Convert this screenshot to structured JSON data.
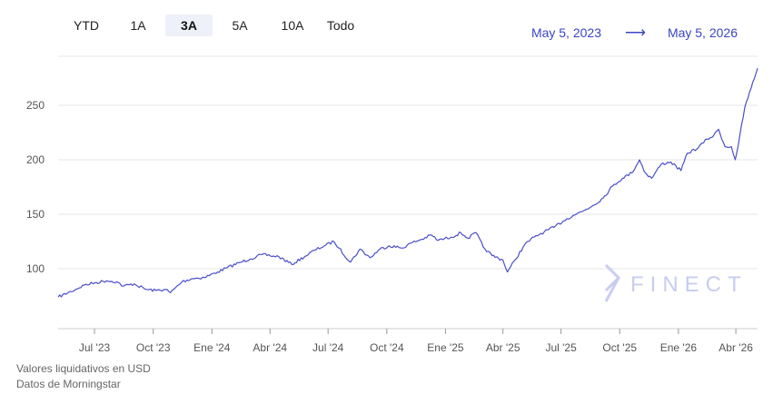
{
  "range_tabs": [
    {
      "label": "YTD",
      "active": false
    },
    {
      "label": "1A",
      "active": false
    },
    {
      "label": "3A",
      "active": true
    },
    {
      "label": "5A",
      "active": false
    },
    {
      "label": "10A",
      "active": false
    },
    {
      "label": "Todo",
      "active": false
    }
  ],
  "date_range": {
    "start": "May 5, 2023",
    "arrow": "⟶",
    "end": "May 5, 2026"
  },
  "watermark": "FINECT",
  "footer": {
    "line1": "Valores liquidativos en USD",
    "line2": "Datos de Morningstar"
  },
  "colors": {
    "line": "#4a4fc9",
    "accent": "#3b44c4",
    "watermark": "#c8cdf0",
    "grid": "#e6e6e6"
  },
  "chart_data": {
    "type": "line",
    "ylim": [
      45,
      295
    ],
    "yticks": [
      100,
      150,
      200,
      250
    ],
    "x_range": [
      "2023-05-05",
      "2026-05-05"
    ],
    "xticks": [
      {
        "date": "2023-07-01",
        "label": "Jul '23"
      },
      {
        "date": "2023-10-01",
        "label": "Oct '23"
      },
      {
        "date": "2024-01-01",
        "label": "Ene '24"
      },
      {
        "date": "2024-04-01",
        "label": "Abr '24"
      },
      {
        "date": "2024-07-01",
        "label": "Jul '24"
      },
      {
        "date": "2024-10-01",
        "label": "Oct '24"
      },
      {
        "date": "2025-01-01",
        "label": "Ene '25"
      },
      {
        "date": "2025-04-01",
        "label": "Abr '25"
      },
      {
        "date": "2025-07-01",
        "label": "Jul '25"
      },
      {
        "date": "2025-10-01",
        "label": "Oct '25"
      },
      {
        "date": "2026-01-01",
        "label": "Ene '26"
      },
      {
        "date": "2026-04-01",
        "label": "Abr '26"
      }
    ],
    "grid": true,
    "series": [
      {
        "points": [
          [
            "2023-05-05",
            74
          ],
          [
            "2023-05-25",
            79
          ],
          [
            "2023-06-15",
            85
          ],
          [
            "2023-07-01",
            87
          ],
          [
            "2023-07-20",
            89
          ],
          [
            "2023-08-05",
            88
          ],
          [
            "2023-08-15",
            84
          ],
          [
            "2023-09-01",
            86
          ],
          [
            "2023-09-20",
            81
          ],
          [
            "2023-10-05",
            80
          ],
          [
            "2023-10-20",
            81
          ],
          [
            "2023-10-28",
            78
          ],
          [
            "2023-11-15",
            88
          ],
          [
            "2023-12-01",
            91
          ],
          [
            "2023-12-20",
            92
          ],
          [
            "2024-01-10",
            97
          ],
          [
            "2024-01-25",
            101
          ],
          [
            "2024-02-15",
            106
          ],
          [
            "2024-03-01",
            109
          ],
          [
            "2024-03-20",
            113
          ],
          [
            "2024-04-01",
            112
          ],
          [
            "2024-04-15",
            111
          ],
          [
            "2024-05-05",
            104
          ],
          [
            "2024-05-25",
            111
          ],
          [
            "2024-06-10",
            117
          ],
          [
            "2024-06-25",
            121
          ],
          [
            "2024-07-10",
            125
          ],
          [
            "2024-07-18",
            119
          ],
          [
            "2024-08-05",
            106
          ],
          [
            "2024-08-20",
            118
          ],
          [
            "2024-09-05",
            110
          ],
          [
            "2024-09-20",
            118
          ],
          [
            "2024-10-05",
            121
          ],
          [
            "2024-10-25",
            119
          ],
          [
            "2024-11-10",
            124
          ],
          [
            "2024-11-25",
            127
          ],
          [
            "2024-12-10",
            131
          ],
          [
            "2024-12-20",
            126
          ],
          [
            "2025-01-10",
            129
          ],
          [
            "2025-01-25",
            133
          ],
          [
            "2025-02-05",
            128
          ],
          [
            "2025-02-18",
            133
          ],
          [
            "2025-03-01",
            120
          ],
          [
            "2025-03-15",
            112
          ],
          [
            "2025-04-01",
            108
          ],
          [
            "2025-04-08",
            97
          ],
          [
            "2025-04-20",
            108
          ],
          [
            "2025-05-05",
            122
          ],
          [
            "2025-05-20",
            129
          ],
          [
            "2025-06-05",
            134
          ],
          [
            "2025-06-20",
            138
          ],
          [
            "2025-07-05",
            144
          ],
          [
            "2025-07-20",
            149
          ],
          [
            "2025-08-05",
            153
          ],
          [
            "2025-08-20",
            158
          ],
          [
            "2025-09-05",
            165
          ],
          [
            "2025-09-20",
            176
          ],
          [
            "2025-10-05",
            183
          ],
          [
            "2025-10-20",
            188
          ],
          [
            "2025-11-01",
            200
          ],
          [
            "2025-11-10",
            188
          ],
          [
            "2025-11-20",
            183
          ],
          [
            "2025-12-05",
            196
          ],
          [
            "2025-12-20",
            198
          ],
          [
            "2026-01-05",
            190
          ],
          [
            "2026-01-15",
            206
          ],
          [
            "2026-02-01",
            211
          ],
          [
            "2026-02-15",
            219
          ],
          [
            "2026-02-25",
            222
          ],
          [
            "2026-03-05",
            228
          ],
          [
            "2026-03-15",
            212
          ],
          [
            "2026-03-25",
            212
          ],
          [
            "2026-03-31",
            200
          ],
          [
            "2026-04-05",
            214
          ],
          [
            "2026-04-15",
            248
          ],
          [
            "2026-04-25",
            266
          ],
          [
            "2026-05-05",
            284
          ]
        ]
      }
    ]
  }
}
